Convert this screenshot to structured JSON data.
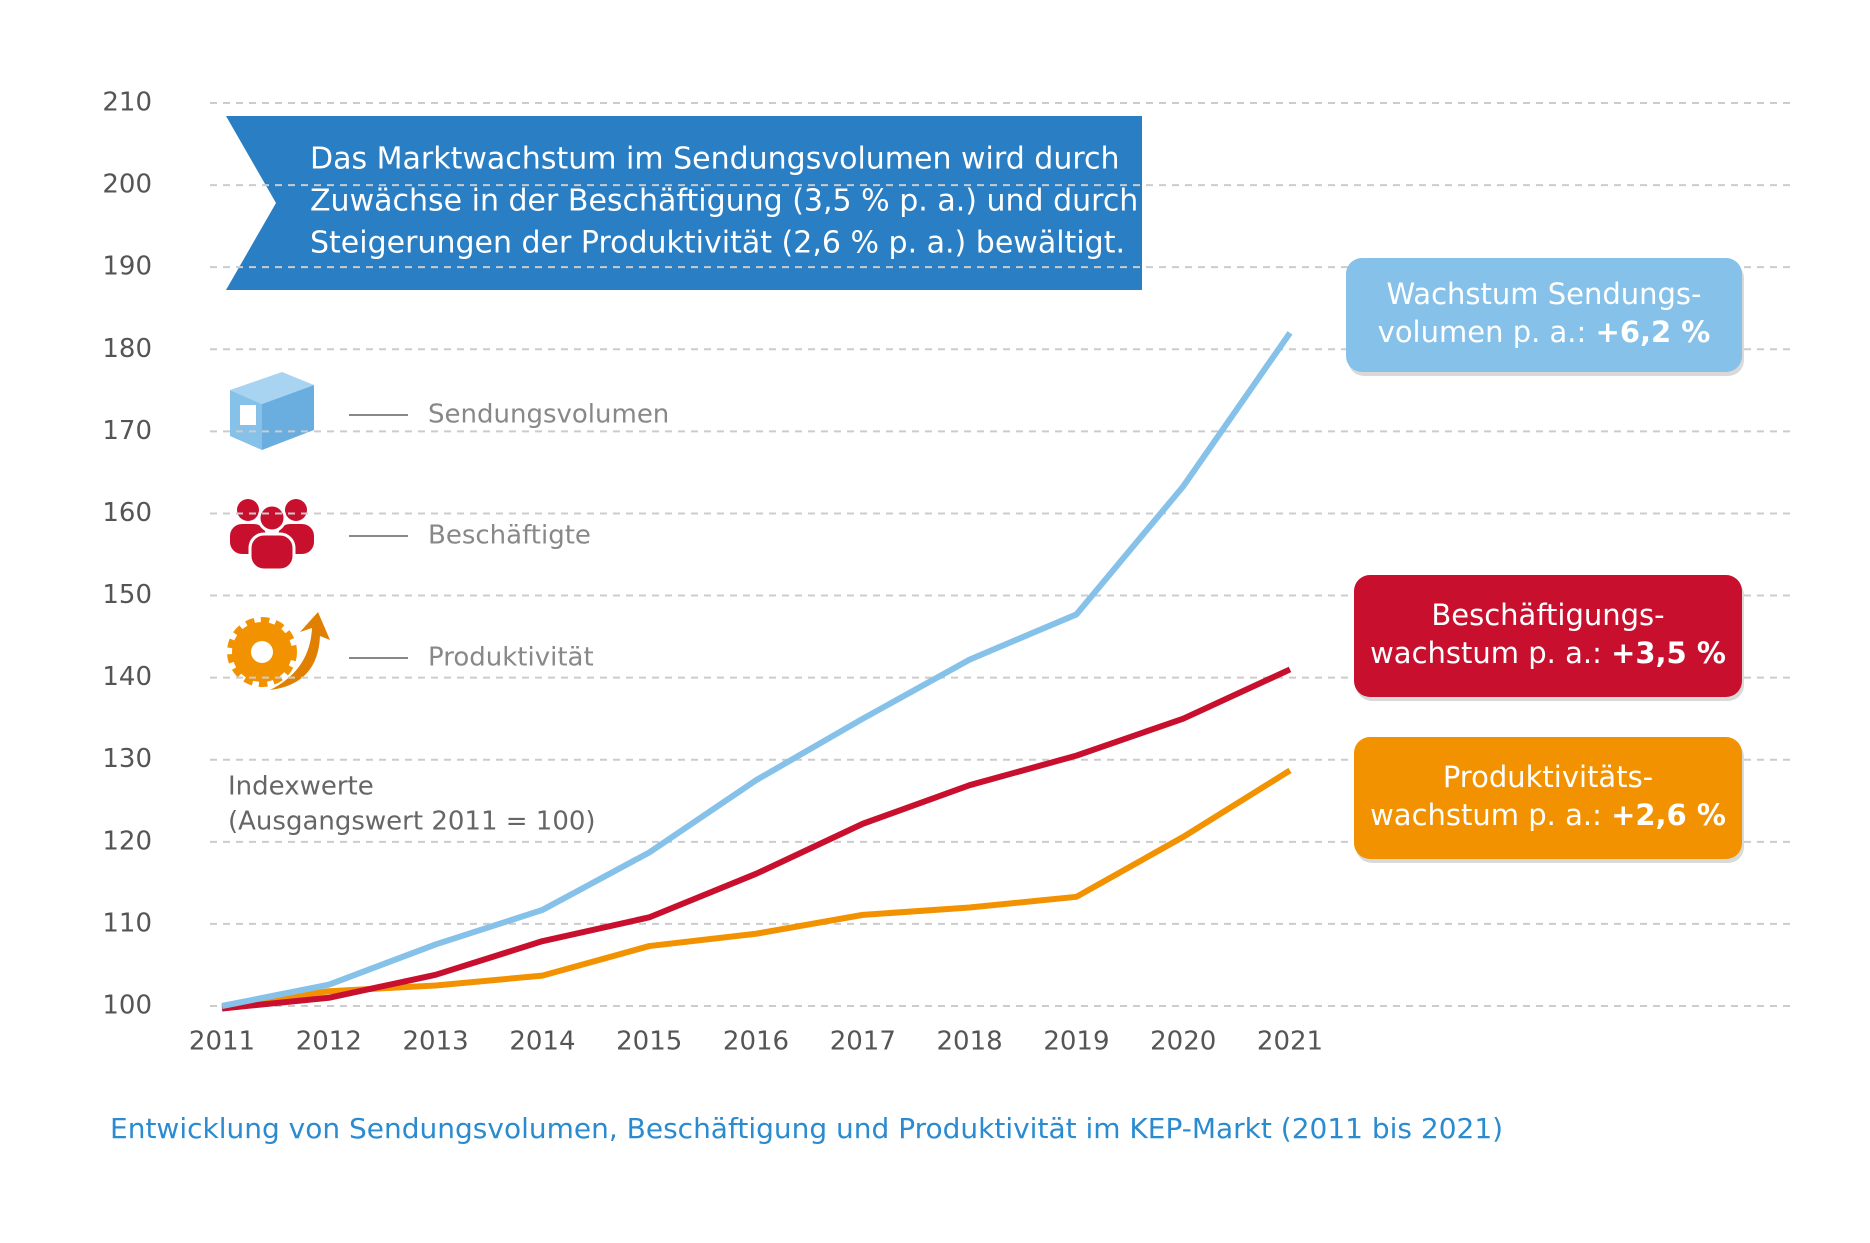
{
  "chart_data": {
    "type": "line",
    "caption": "Entwicklung von Sendungsvolumen, Beschäftigung und Produktivität im KEP-Markt (2011 bis 2021)",
    "banner": [
      "Das Marktwachstum im Sendungsvolumen wird durch",
      "Zuwächse in der Beschäftigung (3,5 % p. a.) und durch",
      "Steigerungen der Produktivität (2,6 %  p. a.) bewältigt."
    ],
    "note": [
      "Indexwerte",
      "(Ausgangswert 2011 = 100)"
    ],
    "categories": [
      "2011",
      "2012",
      "2013",
      "2014",
      "2015",
      "2016",
      "2017",
      "2018",
      "2019",
      "2020",
      "2021"
    ],
    "series": [
      {
        "name": "Sendungsvolumen",
        "color": "#85c1e9",
        "values": [
          100,
          102.6,
          107.5,
          111.7,
          118.7,
          127.5,
          135,
          142.2,
          147.7,
          163.3,
          182
        ]
      },
      {
        "name": "Beschäftigte",
        "color": "#c8102e",
        "values": [
          99.7,
          101,
          103.8,
          107.9,
          110.8,
          116.1,
          122.2,
          126.9,
          130.5,
          135,
          141
        ]
      },
      {
        "name": "Produktivität",
        "color": "#f39200",
        "values": [
          100,
          101.8,
          102.5,
          103.7,
          107.3,
          108.8,
          111.1,
          112,
          113.3,
          120.6,
          128.7
        ]
      }
    ],
    "callouts": [
      {
        "lines": [
          "Wachstum Sendungs-",
          "volumen p. a.: "
        ],
        "highlight": "+6,2 %",
        "color": "#85c1e9"
      },
      {
        "lines": [
          "Beschäftigungs-",
          "wachstum p. a.: "
        ],
        "highlight": "+3,5 %",
        "color": "#c8102e"
      },
      {
        "lines": [
          "Produktivitäts-",
          "wachstum p. a.: "
        ],
        "highlight": "+2,6 %",
        "color": "#f39200"
      }
    ],
    "ylim": [
      100,
      210
    ],
    "yticks": [
      100,
      110,
      120,
      130,
      140,
      150,
      160,
      170,
      180,
      190,
      200,
      210
    ],
    "grid": true
  }
}
